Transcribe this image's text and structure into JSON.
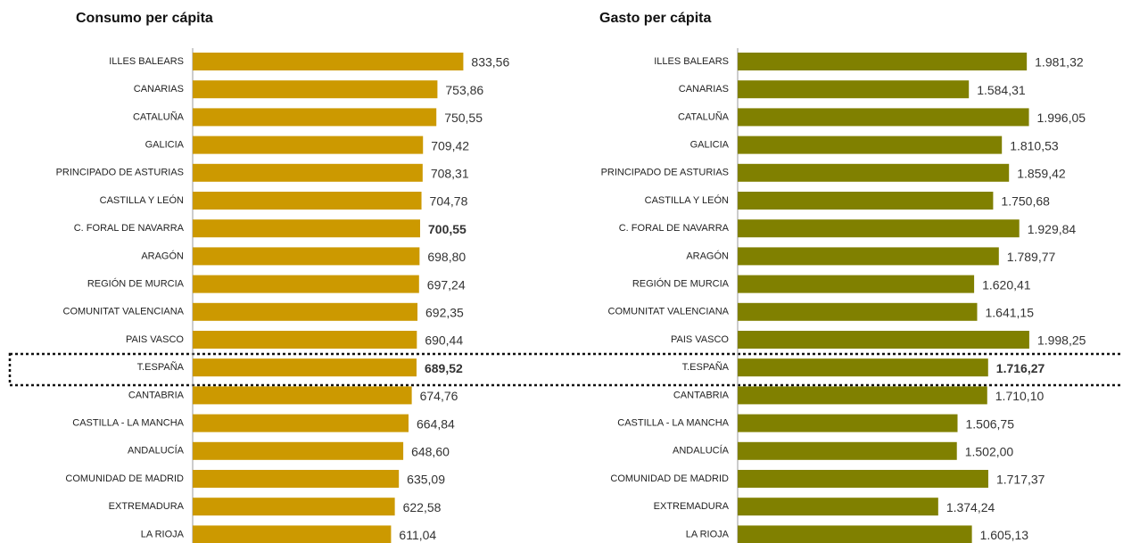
{
  "chart_data": [
    {
      "type": "bar",
      "orientation": "horizontal",
      "title": "Consumo per cápita",
      "color": "#cc9900",
      "categories": [
        "ILLES BALEARS",
        "CANARIAS",
        "CATALUÑA",
        "GALICIA",
        "PRINCIPADO DE ASTURIAS",
        "CASTILLA Y LEÓN",
        "C. FORAL DE NAVARRA",
        "ARAGÓN",
        "REGIÓN DE MURCIA",
        "COMUNITAT VALENCIANA",
        "PAIS VASCO",
        "T.ESPAÑA",
        "CANTABRIA",
        "CASTILLA - LA MANCHA",
        "ANDALUCÍA",
        "COMUNIDAD DE MADRID",
        "EXTREMADURA",
        "LA RIOJA"
      ],
      "values": [
        833.56,
        753.86,
        750.55,
        709.42,
        708.31,
        704.78,
        700.55,
        698.8,
        697.24,
        692.35,
        690.44,
        689.52,
        674.76,
        664.84,
        648.6,
        635.09,
        622.58,
        611.04
      ],
      "value_labels": [
        "833,56",
        "753,86",
        "750,55",
        "709,42",
        "708,31",
        "704,78",
        "700,55",
        "698,80",
        "697,24",
        "692,35",
        "690,44",
        "689,52",
        "674,76",
        "664,84",
        "648,60",
        "635,09",
        "622,58",
        "611,04"
      ],
      "bold_indices": [
        6,
        11
      ],
      "xlim": [
        0,
        1000
      ]
    },
    {
      "type": "bar",
      "orientation": "horizontal",
      "title": "Gasto per cápita",
      "color": "#808000",
      "categories": [
        "ILLES BALEARS",
        "CANARIAS",
        "CATALUÑA",
        "GALICIA",
        "PRINCIPADO DE ASTURIAS",
        "CASTILLA Y LEÓN",
        "C. FORAL DE NAVARRA",
        "ARAGÓN",
        "REGIÓN DE MURCIA",
        "COMUNITAT VALENCIANA",
        "PAIS VASCO",
        "T.ESPAÑA",
        "CANTABRIA",
        "CASTILLA - LA MANCHA",
        "ANDALUCÍA",
        "COMUNIDAD DE MADRID",
        "EXTREMADURA",
        "LA RIOJA"
      ],
      "values": [
        1981.32,
        1584.31,
        1996.05,
        1810.53,
        1859.42,
        1750.68,
        1929.84,
        1789.77,
        1620.41,
        1641.15,
        1998.25,
        1716.27,
        1710.1,
        1506.75,
        1502.0,
        1717.37,
        1374.24,
        1605.13
      ],
      "value_labels": [
        "1.981,32",
        "1.584,31",
        "1.996,05",
        "1.810,53",
        "1.859,42",
        "1.750,68",
        "1.929,84",
        "1.789,77",
        "1.620,41",
        "1.641,15",
        "1.998,25",
        "1.716,27",
        "1.710,10",
        "1.506,75",
        "1.502,00",
        "1.717,37",
        "1.374,24",
        "1.605,13"
      ],
      "bold_indices": [
        11
      ],
      "xlim": [
        0,
        2500
      ]
    }
  ]
}
